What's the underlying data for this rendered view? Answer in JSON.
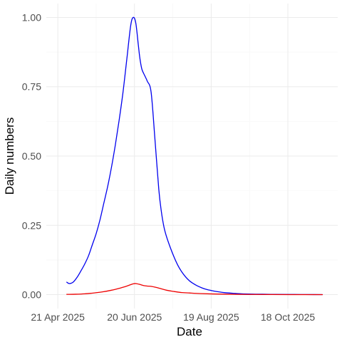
{
  "chart_data": {
    "type": "line",
    "title": "",
    "xlabel": "Date",
    "ylabel": "Daily numbers",
    "x_tick_labels": [
      "21 Apr 2025",
      "20 Jun 2025",
      "19 Aug 2025",
      "18 Oct 2025"
    ],
    "x_ticks": [
      "2025-04-21",
      "2025-06-20",
      "2025-08-19",
      "2025-10-18"
    ],
    "xlim": [
      "2025-04-12",
      "2025-11-26"
    ],
    "y_tick_labels": [
      "0.00",
      "0.25",
      "0.50",
      "0.75",
      "1.00"
    ],
    "y_ticks": [
      0,
      0.25,
      0.5,
      0.75,
      1.0
    ],
    "ylim": [
      -0.05,
      1.05
    ],
    "grid": true,
    "legend": "none",
    "series": [
      {
        "color": "#0000ee",
        "x": [
          "2025-04-28",
          "2025-04-30",
          "2025-05-03",
          "2025-05-06",
          "2025-05-09",
          "2025-05-12",
          "2025-05-15",
          "2025-05-18",
          "2025-05-21",
          "2025-05-24",
          "2025-05-27",
          "2025-05-30",
          "2025-06-02",
          "2025-06-05",
          "2025-06-08",
          "2025-06-11",
          "2025-06-14",
          "2025-06-17",
          "2025-06-19",
          "2025-06-21",
          "2025-06-23",
          "2025-06-24",
          "2025-06-25",
          "2025-06-26",
          "2025-06-28",
          "2025-06-30",
          "2025-07-03",
          "2025-07-06",
          "2025-07-09",
          "2025-07-11",
          "2025-07-13",
          "2025-07-15",
          "2025-07-18",
          "2025-07-21",
          "2025-07-24",
          "2025-07-27",
          "2025-07-30",
          "2025-08-02",
          "2025-08-05",
          "2025-08-08",
          "2025-08-12",
          "2025-08-16",
          "2025-08-20",
          "2025-08-25",
          "2025-08-30",
          "2025-09-05",
          "2025-09-12",
          "2025-09-20",
          "2025-09-28",
          "2025-10-08",
          "2025-10-18",
          "2025-10-28",
          "2025-11-07",
          "2025-11-14"
        ],
        "values": [
          0.045,
          0.04,
          0.045,
          0.062,
          0.085,
          0.11,
          0.14,
          0.18,
          0.22,
          0.27,
          0.33,
          0.39,
          0.46,
          0.54,
          0.63,
          0.73,
          0.85,
          0.97,
          1.0,
          0.98,
          0.9,
          0.86,
          0.83,
          0.81,
          0.79,
          0.77,
          0.73,
          0.56,
          0.38,
          0.3,
          0.245,
          0.21,
          0.17,
          0.135,
          0.105,
          0.082,
          0.064,
          0.05,
          0.04,
          0.032,
          0.024,
          0.018,
          0.014,
          0.01,
          0.007,
          0.005,
          0.003,
          0.002,
          0.0015,
          0.001,
          0.0007,
          0.0005,
          0.0003,
          0.0002
        ]
      },
      {
        "color": "#ee0000",
        "x": [
          "2025-04-28",
          "2025-05-05",
          "2025-05-12",
          "2025-05-19",
          "2025-05-26",
          "2025-06-02",
          "2025-06-09",
          "2025-06-14",
          "2025-06-17",
          "2025-06-19",
          "2025-06-21",
          "2025-06-24",
          "2025-06-27",
          "2025-06-30",
          "2025-07-03",
          "2025-07-07",
          "2025-07-11",
          "2025-07-15",
          "2025-07-20",
          "2025-07-26",
          "2025-08-02",
          "2025-08-10",
          "2025-08-20",
          "2025-09-01",
          "2025-09-15",
          "2025-10-01",
          "2025-10-20",
          "2025-11-14"
        ],
        "values": [
          0.001,
          0.0015,
          0.003,
          0.006,
          0.01,
          0.016,
          0.024,
          0.031,
          0.036,
          0.039,
          0.04,
          0.037,
          0.033,
          0.031,
          0.03,
          0.026,
          0.021,
          0.016,
          0.012,
          0.008,
          0.006,
          0.004,
          0.0025,
          0.0015,
          0.0008,
          0.0004,
          0.0002,
          0.0001
        ]
      }
    ]
  }
}
